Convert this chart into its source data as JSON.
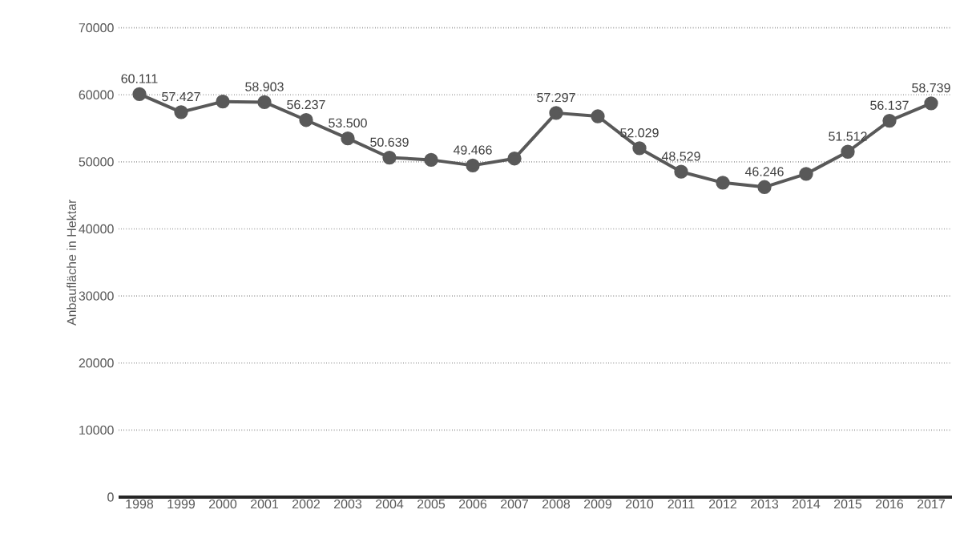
{
  "chart_data": {
    "type": "line",
    "ylabel": "Anbaufläche in Hektar",
    "categories": [
      "1998",
      "1999",
      "2000",
      "2001",
      "2002",
      "2003",
      "2004",
      "2005",
      "2006",
      "2007",
      "2008",
      "2009",
      "2010",
      "2011",
      "2012",
      "2013",
      "2014",
      "2015",
      "2016",
      "2017"
    ],
    "values": [
      60111,
      57427,
      59000,
      58903,
      56237,
      53500,
      50639,
      50300,
      49466,
      50500,
      57297,
      56800,
      52029,
      48529,
      46900,
      46246,
      48200,
      51512,
      56137,
      58739
    ],
    "value_labels": [
      "60.111",
      "57.427",
      null,
      "58.903",
      "56.237",
      "53.500",
      "50.639",
      null,
      "49.466",
      null,
      "57.297",
      null,
      "52.029",
      "48.529",
      null,
      "46.246",
      null,
      "51.512",
      "56.137",
      "58.739"
    ],
    "color": "#595959",
    "marker": "circle",
    "line_style": "solid",
    "ylim": [
      0,
      70000
    ],
    "yticks": [
      0,
      10000,
      20000,
      30000,
      40000,
      50000,
      60000,
      70000
    ],
    "grid": "y"
  }
}
